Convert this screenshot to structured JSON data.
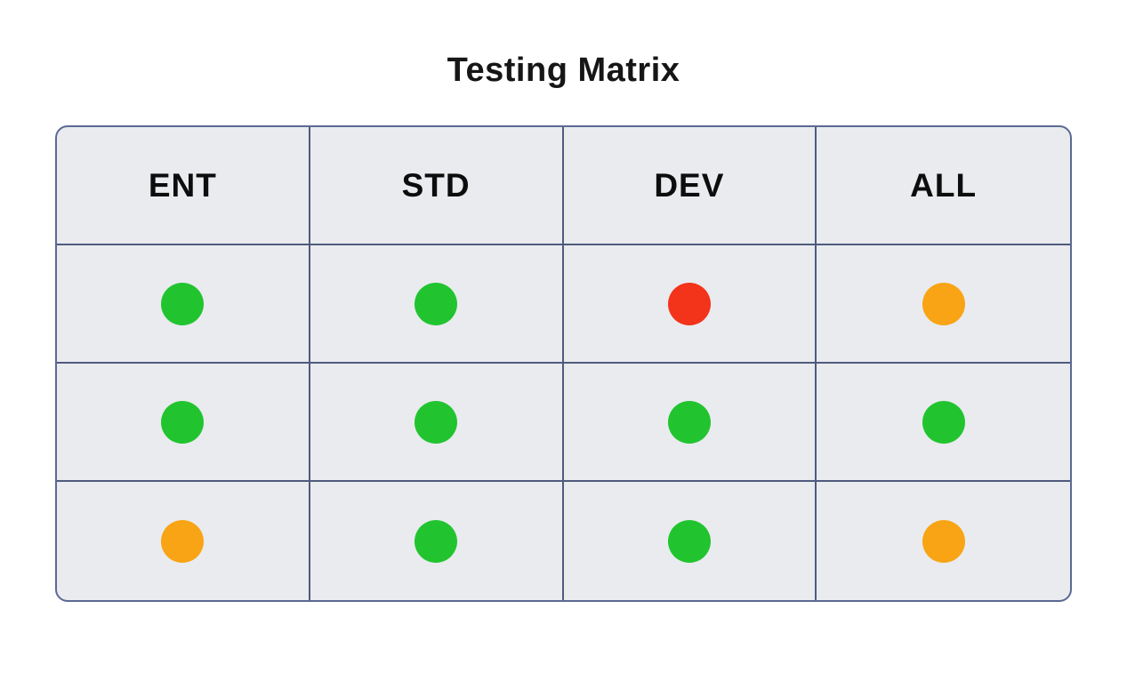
{
  "title": "Testing Matrix",
  "table": {
    "columns": [
      "ENT",
      "STD",
      "DEV",
      "ALL"
    ],
    "rows": [
      [
        "green",
        "green",
        "red",
        "orange"
      ],
      [
        "green",
        "green",
        "green",
        "green"
      ],
      [
        "orange",
        "green",
        "green",
        "orange"
      ]
    ]
  },
  "colors": {
    "green": "#21c42f",
    "red": "#f3331a",
    "orange": "#f8a414",
    "cell_background": "#e9ebef",
    "grid_border": "#4f5b7d",
    "outer_border": "#5b6a94",
    "title_text": "#161616"
  }
}
